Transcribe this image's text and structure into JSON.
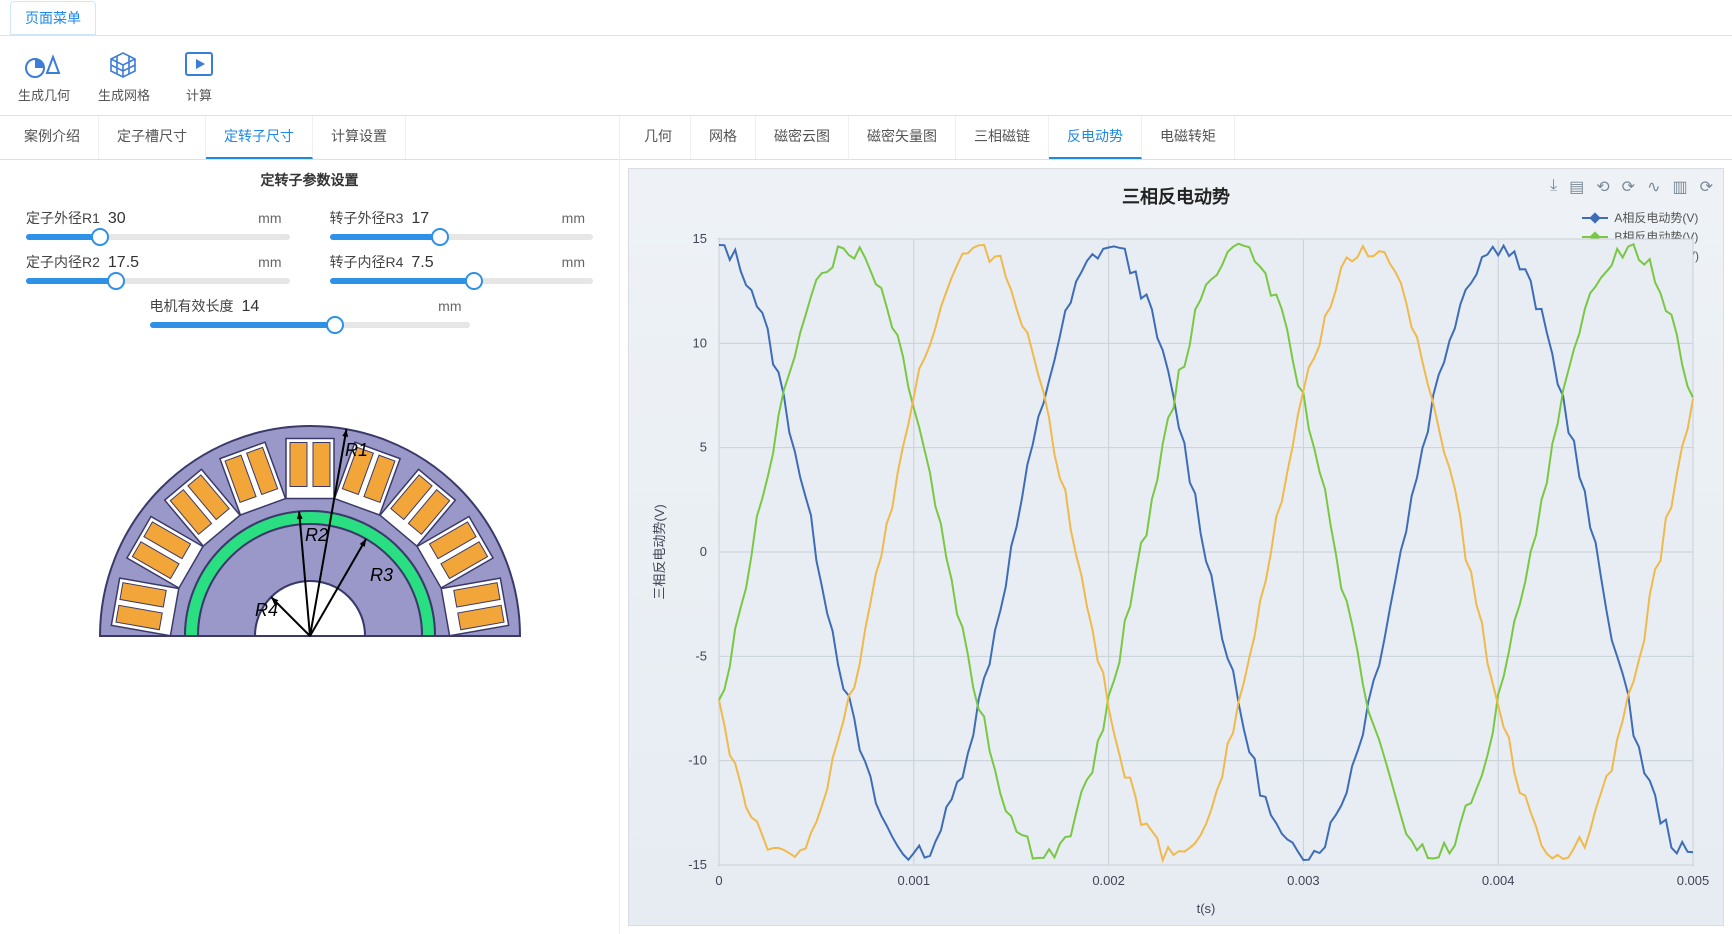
{
  "top_menu": {
    "label": "页面菜单"
  },
  "toolbar": {
    "buttons": [
      {
        "id": "geom",
        "label": "生成几何"
      },
      {
        "id": "mesh",
        "label": "生成网格"
      },
      {
        "id": "calc",
        "label": "计算"
      }
    ]
  },
  "left_tabs": {
    "items": [
      "案例介绍",
      "定子槽尺寸",
      "定转子尺寸",
      "计算设置"
    ],
    "active_index": 2
  },
  "panel": {
    "title": "定转子参数设置",
    "params": {
      "r1": {
        "label": "定子外径R1",
        "value": "30",
        "unit": "mm",
        "fill_pct": 28
      },
      "r2": {
        "label": "定子内径R2",
        "value": "17.5",
        "unit": "mm",
        "fill_pct": 34
      },
      "r3": {
        "label": "转子外径R3",
        "value": "17",
        "unit": "mm",
        "fill_pct": 42
      },
      "r4": {
        "label": "转子内径R4",
        "value": "7.5",
        "unit": "mm",
        "fill_pct": 55
      },
      "len": {
        "label": "电机有效长度",
        "value": "14",
        "unit": "mm",
        "fill_pct": 58
      }
    },
    "diagram": {
      "labels": {
        "r1": "R1",
        "r2": "R2",
        "r3": "R3",
        "r4": "R4"
      },
      "colors": {
        "stator": "#9a98c8",
        "airgap": "#2adf82",
        "rotor": "#9a98c8",
        "shaft": "#ffffff",
        "coil": "#f2a63a",
        "outline": "#3a3a6a"
      }
    }
  },
  "right_tabs": {
    "items": [
      "几何",
      "网格",
      "磁密云图",
      "磁密矢量图",
      "三相磁链",
      "反电动势",
      "电磁转矩"
    ],
    "active_index": 5
  },
  "chart": {
    "title": "三相反电动势",
    "xlabel": "t(s)",
    "ylabel": "三相反电动势(V)",
    "xlim": [
      0,
      0.005
    ],
    "ylim": [
      -15,
      15
    ],
    "xticks": [
      0,
      0.001,
      0.002,
      0.003,
      0.004,
      0.005
    ],
    "yticks": [
      -15,
      -10,
      -5,
      0,
      5,
      10,
      15
    ],
    "grid_color": "#c9d0d8",
    "background": "#e8edf3",
    "axis_color": "#2a4057",
    "series": [
      {
        "name": "A相反电动势(V)",
        "color": "#3d6db8",
        "marker": "diamond",
        "amplitude": 14.6,
        "phase_deg": 90,
        "freq_hz": 500
      },
      {
        "name": "B相反电动势(V)",
        "color": "#79c843",
        "marker": "diamond",
        "amplitude": 14.6,
        "phase_deg": 330,
        "freq_hz": 500
      },
      {
        "name": "C相反电动势(V)",
        "color": "#f1b94b",
        "marker": "diamond",
        "amplitude": 14.6,
        "phase_deg": 210,
        "freq_hz": 500
      }
    ],
    "noise": 0.5,
    "n_points": 180,
    "line_width": 2,
    "toolbar_icons": [
      "download",
      "clipboard",
      "crop-back",
      "crop-forward",
      "wave",
      "bars",
      "refresh"
    ]
  }
}
